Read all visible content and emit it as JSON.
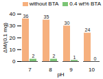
{
  "chart_data": {
    "type": "bar",
    "categories": [
      7,
      8,
      9,
      10
    ],
    "series": [
      {
        "name": "without BTA",
        "color": "#f6b07e",
        "values": [
          36,
          35,
          30,
          24
        ]
      },
      {
        "name": "0.4 wt% BTA",
        "color": "#7cc576",
        "values": [
          2,
          2,
          1,
          0
        ]
      }
    ],
    "x_label": "pH",
    "y_label": "ΔM/(0.1 mg)",
    "ylim": [
      0,
      40
    ],
    "yticks": [
      0,
      10,
      20,
      30,
      40
    ],
    "grid": false,
    "data_labels": true,
    "legend": "upper right"
  }
}
